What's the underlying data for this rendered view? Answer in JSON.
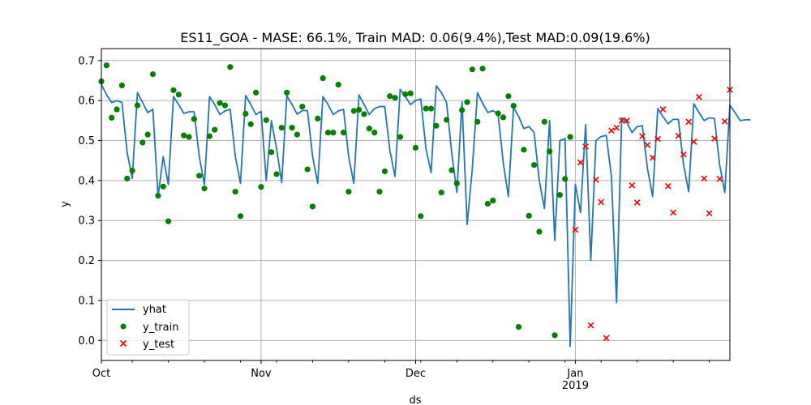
{
  "chart_data": {
    "type": "line",
    "title": "ES11_GOA - MASE: 66.1%, Train MAD: 0.06(9.4%),Test MAD:0.09(19.6%)",
    "xlabel": "ds",
    "ylabel": "y",
    "x_start": "2018-10-01",
    "x_end": "2019-01-31",
    "xlim": [
      "2018-10-01",
      "2019-01-31"
    ],
    "ylim": [
      -0.05,
      0.73
    ],
    "y_ticks": [
      "0.0",
      "0.1",
      "0.2",
      "0.3",
      "0.4",
      "0.5",
      "0.6",
      "0.7"
    ],
    "x_ticks": [
      {
        "date": "2018-10-01",
        "label": "Oct",
        "sublabel": ""
      },
      {
        "date": "2018-11-01",
        "label": "Nov",
        "sublabel": ""
      },
      {
        "date": "2018-12-01",
        "label": "Dec",
        "sublabel": ""
      },
      {
        "date": "2019-01-01",
        "label": "Jan",
        "sublabel": "2019"
      }
    ],
    "grid": true,
    "legend_position": "lower-left",
    "legend": [
      {
        "name": "yhat",
        "marker": "line",
        "color": "#1f77b4"
      },
      {
        "name": "y_train",
        "marker": "circle",
        "color": "#008000"
      },
      {
        "name": "y_test",
        "marker": "x",
        "color": "#ff0000"
      }
    ],
    "series": [
      {
        "name": "yhat",
        "type": "line",
        "color": "#1f77b4",
        "values": [
          0.64,
          0.615,
          0.595,
          0.6,
          0.595,
          0.47,
          0.405,
          0.62,
          0.595,
          0.57,
          0.578,
          0.36,
          0.46,
          0.39,
          0.61,
          0.59,
          0.568,
          0.572,
          0.572,
          0.46,
          0.39,
          0.61,
          0.59,
          0.565,
          0.574,
          0.578,
          0.46,
          0.393,
          0.613,
          0.59,
          0.565,
          0.573,
          0.4,
          0.55,
          0.48,
          0.395,
          0.612,
          0.59,
          0.566,
          0.575,
          0.575,
          0.46,
          0.393,
          0.61,
          0.59,
          0.565,
          0.574,
          0.578,
          0.46,
          0.393,
          0.614,
          0.59,
          0.565,
          0.58,
          0.585,
          0.585,
          0.475,
          0.41,
          0.628,
          0.61,
          0.59,
          0.6,
          0.604,
          0.48,
          0.42,
          0.637,
          0.62,
          0.595,
          0.47,
          0.37,
          0.597,
          0.29,
          0.43,
          0.62,
          0.593,
          0.57,
          0.575,
          0.567,
          0.445,
          0.36,
          0.583,
          0.56,
          0.53,
          0.535,
          0.52,
          0.4,
          0.33,
          0.55,
          0.25,
          0.5,
          0.505,
          -0.015,
          0.39,
          0.32,
          0.54,
          0.2,
          0.5,
          0.51,
          0.513,
          0.41,
          0.095,
          0.557,
          0.545,
          0.52,
          0.535,
          0.537,
          0.43,
          0.36,
          0.58,
          0.56,
          0.542,
          0.553,
          0.553,
          0.44,
          0.372,
          0.592,
          0.57,
          0.55,
          0.557,
          0.555,
          0.44,
          0.37,
          0.588,
          0.57,
          0.55,
          0.552,
          0.552
        ]
      },
      {
        "name": "y_train",
        "type": "scatter",
        "marker": "circle",
        "color": "#008000",
        "points": [
          [
            "2018-10-01",
            0.648
          ],
          [
            "2018-10-02",
            0.688
          ],
          [
            "2018-10-03",
            0.557
          ],
          [
            "2018-10-04",
            0.578
          ],
          [
            "2018-10-05",
            0.638
          ],
          [
            "2018-10-06",
            0.405
          ],
          [
            "2018-10-07",
            0.425
          ],
          [
            "2018-10-08",
            0.588
          ],
          [
            "2018-10-09",
            0.495
          ],
          [
            "2018-10-10",
            0.515
          ],
          [
            "2018-10-11",
            0.666
          ],
          [
            "2018-10-12",
            0.362
          ],
          [
            "2018-10-13",
            0.385
          ],
          [
            "2018-10-14",
            0.298
          ],
          [
            "2018-10-15",
            0.626
          ],
          [
            "2018-10-16",
            0.615
          ],
          [
            "2018-10-17",
            0.513
          ],
          [
            "2018-10-18",
            0.509
          ],
          [
            "2018-10-19",
            0.554
          ],
          [
            "2018-10-20",
            0.412
          ],
          [
            "2018-10-21",
            0.38
          ],
          [
            "2018-10-22",
            0.511
          ],
          [
            "2018-10-23",
            0.527
          ],
          [
            "2018-10-24",
            0.594
          ],
          [
            "2018-10-25",
            0.588
          ],
          [
            "2018-10-26",
            0.684
          ],
          [
            "2018-10-27",
            0.372
          ],
          [
            "2018-10-28",
            0.311
          ],
          [
            "2018-10-29",
            0.567
          ],
          [
            "2018-10-30",
            0.541
          ],
          [
            "2018-10-31",
            0.62
          ],
          [
            "2018-11-01",
            0.384
          ],
          [
            "2018-11-02",
            0.551
          ],
          [
            "2018-11-03",
            0.471
          ],
          [
            "2018-11-04",
            0.416
          ],
          [
            "2018-11-05",
            0.532
          ],
          [
            "2018-11-06",
            0.62
          ],
          [
            "2018-11-07",
            0.532
          ],
          [
            "2018-11-08",
            0.515
          ],
          [
            "2018-11-09",
            0.585
          ],
          [
            "2018-11-10",
            0.428
          ],
          [
            "2018-11-11",
            0.335
          ],
          [
            "2018-11-12",
            0.555
          ],
          [
            "2018-11-13",
            0.656
          ],
          [
            "2018-11-14",
            0.52
          ],
          [
            "2018-11-15",
            0.52
          ],
          [
            "2018-11-16",
            0.64
          ],
          [
            "2018-11-17",
            0.52
          ],
          [
            "2018-11-18",
            0.372
          ],
          [
            "2018-11-19",
            0.574
          ],
          [
            "2018-11-20",
            0.577
          ],
          [
            "2018-11-21",
            0.566
          ],
          [
            "2018-11-22",
            0.53
          ],
          [
            "2018-11-23",
            0.52
          ],
          [
            "2018-11-24",
            0.372
          ],
          [
            "2018-11-25",
            0.423
          ],
          [
            "2018-11-26",
            0.611
          ],
          [
            "2018-11-27",
            0.607
          ],
          [
            "2018-11-28",
            0.509
          ],
          [
            "2018-11-29",
            0.616
          ],
          [
            "2018-11-30",
            0.618
          ],
          [
            "2018-12-01",
            0.482
          ],
          [
            "2018-12-02",
            0.311
          ],
          [
            "2018-12-03",
            0.58
          ],
          [
            "2018-12-04",
            0.58
          ],
          [
            "2018-12-05",
            0.537
          ],
          [
            "2018-12-06",
            0.37
          ],
          [
            "2018-12-07",
            0.552
          ],
          [
            "2018-12-08",
            0.426
          ],
          [
            "2018-12-09",
            0.393
          ],
          [
            "2018-12-10",
            0.576
          ],
          [
            "2018-12-11",
            0.596
          ],
          [
            "2018-12-12",
            0.678
          ],
          [
            "2018-12-13",
            0.547
          ],
          [
            "2018-12-14",
            0.68
          ],
          [
            "2018-12-15",
            0.342
          ],
          [
            "2018-12-16",
            0.35
          ],
          [
            "2018-12-17",
            0.568
          ],
          [
            "2018-12-18",
            0.558
          ],
          [
            "2018-12-19",
            0.611
          ],
          [
            "2018-12-20",
            0.587
          ],
          [
            "2018-12-21",
            0.034
          ],
          [
            "2018-12-22",
            0.477
          ],
          [
            "2018-12-23",
            0.312
          ],
          [
            "2018-12-24",
            0.439
          ],
          [
            "2018-12-25",
            0.272
          ],
          [
            "2018-12-26",
            0.547
          ],
          [
            "2018-12-27",
            0.473
          ],
          [
            "2018-12-28",
            0.013
          ],
          [
            "2018-12-29",
            0.364
          ],
          [
            "2018-12-30",
            0.404
          ],
          [
            "2018-12-31",
            0.509
          ]
        ]
      },
      {
        "name": "y_test",
        "type": "scatter",
        "marker": "x",
        "color": "#ff0000",
        "points": [
          [
            "2019-01-01",
            0.277
          ],
          [
            "2019-01-02",
            0.445
          ],
          [
            "2019-01-03",
            0.485
          ],
          [
            "2019-01-04",
            0.038
          ],
          [
            "2019-01-05",
            0.402
          ],
          [
            "2019-01-06",
            0.346
          ],
          [
            "2019-01-07",
            0.006
          ],
          [
            "2019-01-08",
            0.525
          ],
          [
            "2019-01-09",
            0.532
          ],
          [
            "2019-01-10",
            0.55
          ],
          [
            "2019-01-11",
            0.55
          ],
          [
            "2019-01-12",
            0.388
          ],
          [
            "2019-01-13",
            0.345
          ],
          [
            "2019-01-14",
            0.511
          ],
          [
            "2019-01-15",
            0.489
          ],
          [
            "2019-01-16",
            0.457
          ],
          [
            "2019-01-17",
            0.504
          ],
          [
            "2019-01-18",
            0.578
          ],
          [
            "2019-01-19",
            0.386
          ],
          [
            "2019-01-20",
            0.32
          ],
          [
            "2019-01-21",
            0.512
          ],
          [
            "2019-01-22",
            0.465
          ],
          [
            "2019-01-23",
            0.547
          ],
          [
            "2019-01-24",
            0.497
          ],
          [
            "2019-01-25",
            0.609
          ],
          [
            "2019-01-26",
            0.405
          ],
          [
            "2019-01-27",
            0.318
          ],
          [
            "2019-01-28",
            0.505
          ],
          [
            "2019-01-29",
            0.404
          ],
          [
            "2019-01-30",
            0.548
          ],
          [
            "2019-01-31",
            0.627
          ]
        ]
      }
    ]
  }
}
